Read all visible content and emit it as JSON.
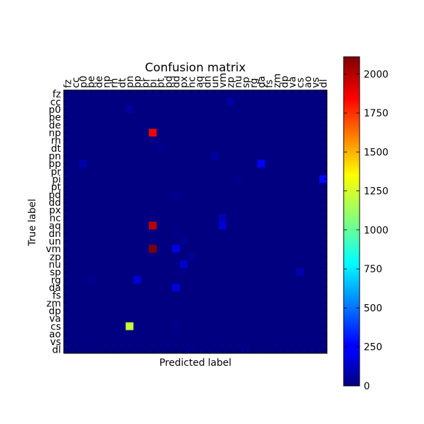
{
  "chart_data": {
    "type": "heatmap",
    "title": "Confusion matrix",
    "xlabel": "Predicted label",
    "ylabel": "True label",
    "labels": [
      "fz",
      "cc",
      "p0",
      "pe",
      "de",
      "np",
      "rh",
      "dt",
      "pn",
      "pp",
      "pr",
      "pi",
      "pt",
      "pd",
      "dd",
      "px",
      "nc",
      "aq",
      "dn",
      "un",
      "vm",
      "zp",
      "nu",
      "sp",
      "rg",
      "da",
      "fs",
      "zm",
      "dp",
      "va",
      "cs",
      "ao",
      "vs",
      "dl"
    ],
    "colorbar": {
      "min": 0,
      "max": 2110,
      "ticks": [
        0,
        250,
        500,
        750,
        1000,
        1250,
        1500,
        1750,
        2000
      ],
      "colormap": "jet"
    },
    "grid": false,
    "nonzero_cells": [
      {
        "true": "cc",
        "pred": "zp",
        "value": 70
      },
      {
        "true": "p0",
        "pred": "pn",
        "value": 60
      },
      {
        "true": "np",
        "pred": "pi",
        "value": 1870
      },
      {
        "true": "rh",
        "pred": "pi",
        "value": 10
      },
      {
        "true": "dt",
        "pred": "pt",
        "value": 30
      },
      {
        "true": "pn",
        "pred": "un",
        "value": 60
      },
      {
        "true": "pp",
        "pred": "p0",
        "value": 80
      },
      {
        "true": "pp",
        "pred": "da",
        "value": 240
      },
      {
        "true": "pr",
        "pred": "fz",
        "value": 10
      },
      {
        "true": "pi",
        "pred": "dl",
        "value": 280
      },
      {
        "true": "pi",
        "pred": "nu",
        "value": 20
      },
      {
        "true": "pd",
        "pred": "dd",
        "value": 30
      },
      {
        "true": "nc",
        "pred": "vm",
        "value": 110
      },
      {
        "true": "aq",
        "pred": "pi",
        "value": 1990
      },
      {
        "true": "aq",
        "pred": "vm",
        "value": 170
      },
      {
        "true": "dn",
        "pred": "dd",
        "value": 20
      },
      {
        "true": "un",
        "pred": "px",
        "value": 40
      },
      {
        "true": "vm",
        "pred": "pi",
        "value": 2110
      },
      {
        "true": "vm",
        "pred": "dd",
        "value": 210
      },
      {
        "true": "zp",
        "pred": "nc",
        "value": 40
      },
      {
        "true": "nu",
        "pred": "px",
        "value": 160
      },
      {
        "true": "sp",
        "pred": "cs",
        "value": 100
      },
      {
        "true": "sp",
        "pred": "px",
        "value": 20
      },
      {
        "true": "rg",
        "pred": "pp",
        "value": 190
      },
      {
        "true": "rg",
        "pred": "pe",
        "value": 30
      },
      {
        "true": "da",
        "pred": "dd",
        "value": 190
      },
      {
        "true": "cs",
        "pred": "pn",
        "value": 1200
      },
      {
        "true": "cs",
        "pred": "dd",
        "value": 30
      },
      {
        "true": "dl",
        "pred": "nc",
        "value": 20
      },
      {
        "true": "dl",
        "pred": "sp",
        "value": 20
      }
    ]
  }
}
